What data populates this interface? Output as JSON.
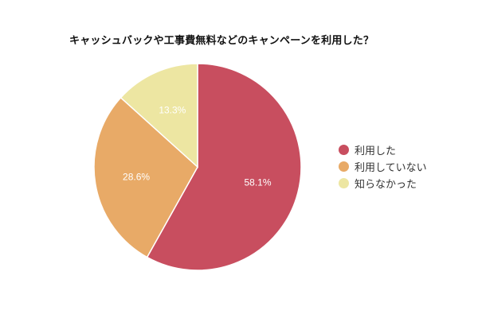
{
  "chart_data": {
    "type": "pie",
    "title": "キャッシュバックや工事費無料などのキャンペーンを利用した？",
    "categories": [
      "利用した",
      "利用していない",
      "知らなかった"
    ],
    "values": [
      58.1,
      28.6,
      13.3
    ],
    "labels": [
      "58.1%",
      "28.6%",
      "13.3%"
    ],
    "colors": [
      "#c84e5f",
      "#e8aa67",
      "#ede6a2"
    ],
    "legend_position": "right",
    "start_angle": "12 o'clock, clockwise"
  },
  "title": "キャッシュバックや工事費無料などのキャンペーンを利用した？",
  "legend": [
    {
      "label": "利用した",
      "color": "#c84e5f"
    },
    {
      "label": "利用していない",
      "color": "#e8aa67"
    },
    {
      "label": "知らなかった",
      "color": "#ede6a2"
    }
  ],
  "slice_labels": [
    "58.1%",
    "28.6%",
    "13.3%"
  ]
}
